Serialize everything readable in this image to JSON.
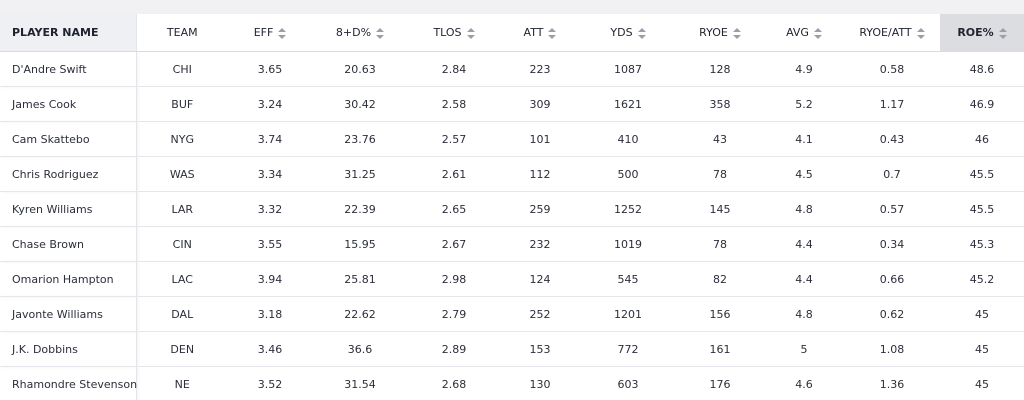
{
  "columns": [
    {
      "key": "name",
      "label": "PLAYER NAME"
    },
    {
      "key": "team",
      "label": "TEAM"
    },
    {
      "key": "eff",
      "label": "EFF"
    },
    {
      "key": "pct8d",
      "label": "8+D%"
    },
    {
      "key": "tlos",
      "label": "TLOS"
    },
    {
      "key": "att",
      "label": "ATT"
    },
    {
      "key": "yds",
      "label": "YDS"
    },
    {
      "key": "ryoe",
      "label": "RYOE"
    },
    {
      "key": "avg",
      "label": "AVG"
    },
    {
      "key": "ryoe_att",
      "label": "RYOE/ATT"
    },
    {
      "key": "roe",
      "label": "ROE%"
    }
  ],
  "sorted_column": "roe",
  "rows": [
    {
      "name": "D'Andre Swift",
      "team": "CHI",
      "eff": "3.65",
      "pct8d": "20.63",
      "tlos": "2.84",
      "att": "223",
      "yds": "1087",
      "ryoe": "128",
      "avg": "4.9",
      "ryoe_att": "0.58",
      "roe": "48.6"
    },
    {
      "name": "James Cook",
      "team": "BUF",
      "eff": "3.24",
      "pct8d": "30.42",
      "tlos": "2.58",
      "att": "309",
      "yds": "1621",
      "ryoe": "358",
      "avg": "5.2",
      "ryoe_att": "1.17",
      "roe": "46.9"
    },
    {
      "name": "Cam Skattebo",
      "team": "NYG",
      "eff": "3.74",
      "pct8d": "23.76",
      "tlos": "2.57",
      "att": "101",
      "yds": "410",
      "ryoe": "43",
      "avg": "4.1",
      "ryoe_att": "0.43",
      "roe": "46"
    },
    {
      "name": "Chris Rodriguez",
      "team": "WAS",
      "eff": "3.34",
      "pct8d": "31.25",
      "tlos": "2.61",
      "att": "112",
      "yds": "500",
      "ryoe": "78",
      "avg": "4.5",
      "ryoe_att": "0.7",
      "roe": "45.5"
    },
    {
      "name": "Kyren Williams",
      "team": "LAR",
      "eff": "3.32",
      "pct8d": "22.39",
      "tlos": "2.65",
      "att": "259",
      "yds": "1252",
      "ryoe": "145",
      "avg": "4.8",
      "ryoe_att": "0.57",
      "roe": "45.5"
    },
    {
      "name": "Chase Brown",
      "team": "CIN",
      "eff": "3.55",
      "pct8d": "15.95",
      "tlos": "2.67",
      "att": "232",
      "yds": "1019",
      "ryoe": "78",
      "avg": "4.4",
      "ryoe_att": "0.34",
      "roe": "45.3"
    },
    {
      "name": "Omarion Hampton",
      "team": "LAC",
      "eff": "3.94",
      "pct8d": "25.81",
      "tlos": "2.98",
      "att": "124",
      "yds": "545",
      "ryoe": "82",
      "avg": "4.4",
      "ryoe_att": "0.66",
      "roe": "45.2"
    },
    {
      "name": "Javonte Williams",
      "team": "DAL",
      "eff": "3.18",
      "pct8d": "22.62",
      "tlos": "2.79",
      "att": "252",
      "yds": "1201",
      "ryoe": "156",
      "avg": "4.8",
      "ryoe_att": "0.62",
      "roe": "45"
    },
    {
      "name": "J.K. Dobbins",
      "team": "DEN",
      "eff": "3.46",
      "pct8d": "36.6",
      "tlos": "2.89",
      "att": "153",
      "yds": "772",
      "ryoe": "161",
      "avg": "5",
      "ryoe_att": "1.08",
      "roe": "45"
    },
    {
      "name": "Rhamondre Stevenson",
      "team": "NE",
      "eff": "3.52",
      "pct8d": "31.54",
      "tlos": "2.68",
      "att": "130",
      "yds": "603",
      "ryoe": "176",
      "avg": "4.6",
      "ryoe_att": "1.36",
      "roe": "45"
    }
  ]
}
